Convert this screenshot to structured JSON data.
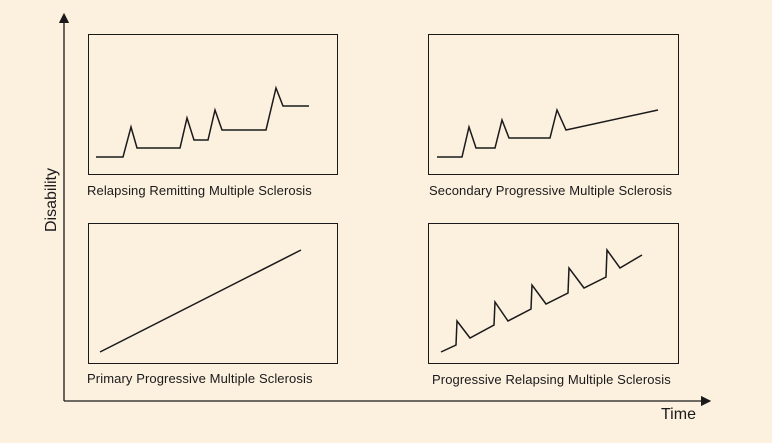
{
  "colors": {
    "background": "#fcf0df",
    "line": "#1a1a1a"
  },
  "axes": {
    "y_label": "Disability",
    "x_label": "Time"
  },
  "panels": [
    {
      "id": "rrms",
      "caption": "Relapsing Remitting Multiple Sclerosis",
      "pattern": "relapses with full recovery to a stepped baseline"
    },
    {
      "id": "spms",
      "caption": "Secondary Progressive Multiple Sclerosis",
      "pattern": "early relapses followed by steady progression"
    },
    {
      "id": "ppms",
      "caption": "Primary Progressive Multiple Sclerosis",
      "pattern": "steady progression from onset"
    },
    {
      "id": "prms",
      "caption": "Progressive Relapsing Multiple Sclerosis",
      "pattern": "steady progression with superimposed relapses"
    }
  ]
}
